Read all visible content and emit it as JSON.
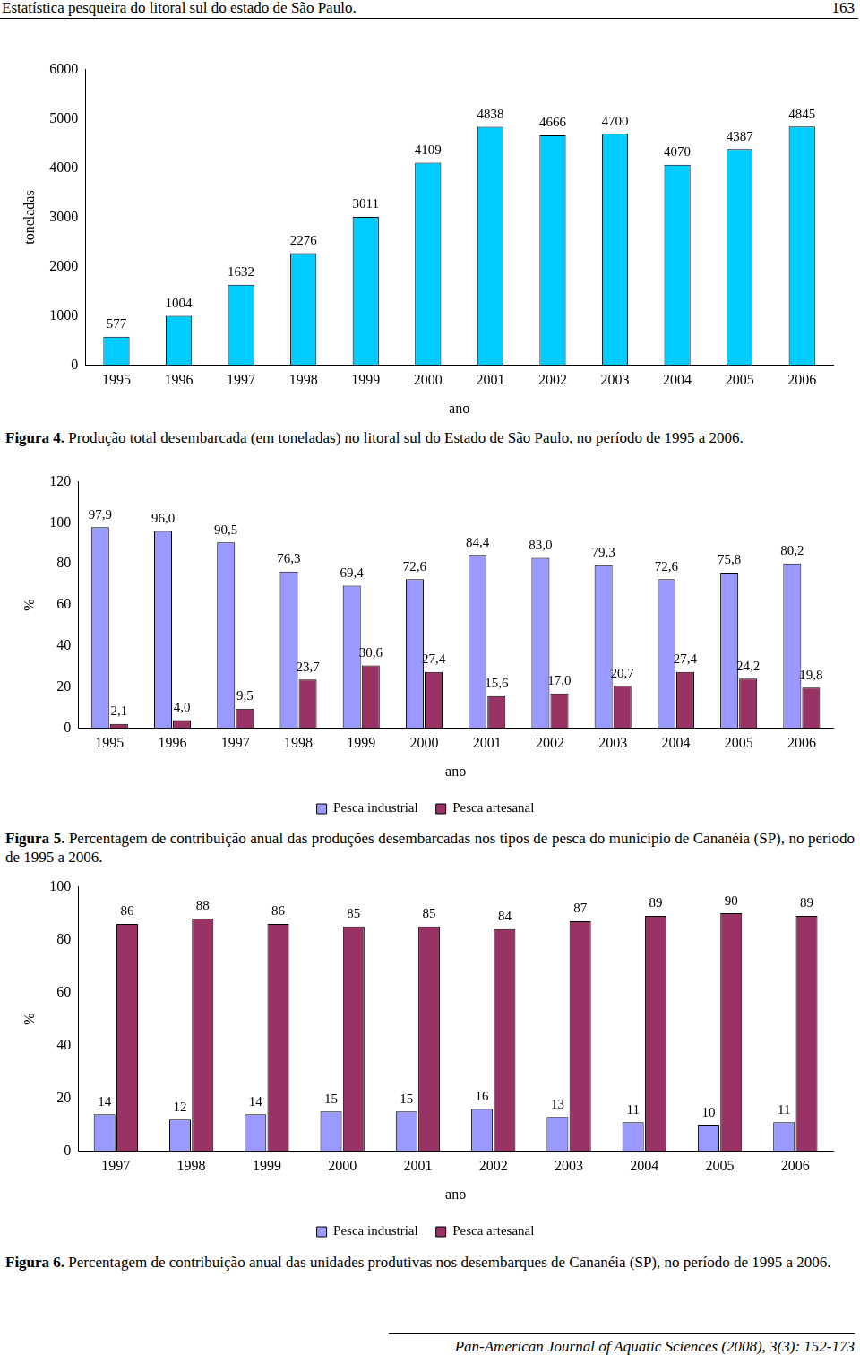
{
  "page": {
    "header": "Estatística pesqueira do litoral sul do estado de São Paulo.",
    "page_number": "163",
    "footer": "Pan-American Journal of Aquatic Sciences (2008), 3(3): 152-173"
  },
  "chart_data": [
    {
      "type": "bar",
      "caption_label": "Figura 4.",
      "caption": "Produção total desembarcada (em toneladas) no litoral sul do Estado de São Paulo, no período de 1995 a 2006.",
      "x_label": "ano",
      "y_label": "toneladas",
      "categories": [
        "1995",
        "1996",
        "1997",
        "1998",
        "1999",
        "2000",
        "2001",
        "2002",
        "2003",
        "2004",
        "2005",
        "2006"
      ],
      "values": [
        577,
        1004,
        1632,
        2276,
        3011,
        4109,
        4838,
        4666,
        4700,
        4070,
        4387,
        4845
      ],
      "color": "#00ccff",
      "ylim": [
        0,
        6000
      ],
      "yticks": [
        0,
        1000,
        2000,
        3000,
        4000,
        5000,
        6000
      ],
      "grid": false,
      "data_labels": true
    },
    {
      "type": "bar",
      "caption_label": "Figura 5.",
      "caption": "Percentagem de contribuição anual das produções desembarcadas nos tipos de pesca do município de Cananéia (SP), no período de 1995 a 2006.",
      "x_label": "ano",
      "y_label": "%",
      "categories": [
        "1995",
        "1996",
        "1997",
        "1998",
        "1999",
        "2000",
        "2001",
        "2002",
        "2003",
        "2004",
        "2005",
        "2006"
      ],
      "series": [
        {
          "name": "Pesca industrial",
          "color": "#9999ff",
          "values": [
            97.9,
            96.0,
            90.5,
            76.3,
            69.4,
            72.6,
            84.4,
            83.0,
            79.3,
            72.6,
            75.8,
            80.2
          ],
          "value_labels": [
            "97,9",
            "96,0",
            "90,5",
            "76,3",
            "69,4",
            "72,6",
            "84,4",
            "83,0",
            "79,3",
            "72,6",
            "75,8",
            "80,2"
          ]
        },
        {
          "name": "Pesca artesanal",
          "color": "#993366",
          "values": [
            2.1,
            4.0,
            9.5,
            23.7,
            30.6,
            27.4,
            15.6,
            17.0,
            20.7,
            27.4,
            24.2,
            19.8
          ],
          "value_labels": [
            "2,1",
            "4,0",
            "9,5",
            "23,7",
            "30,6",
            "27,4",
            "15,6",
            "17,0",
            "20,7",
            "27,4",
            "24,2",
            "19,8"
          ]
        }
      ],
      "ylim": [
        0,
        120
      ],
      "yticks": [
        0,
        20,
        40,
        60,
        80,
        100,
        120
      ],
      "grid": false,
      "data_labels": true,
      "legend": "bottom"
    },
    {
      "type": "bar",
      "caption_label": "Figura 6.",
      "caption": "Percentagem de contribuição anual das unidades produtivas nos desembarques de Cananéia (SP), no período de 1995 a 2006.",
      "x_label": "ano",
      "y_label": "%",
      "categories": [
        "1997",
        "1998",
        "1999",
        "2000",
        "2001",
        "2002",
        "2003",
        "2004",
        "2005",
        "2006"
      ],
      "series": [
        {
          "name": "Pesca industrial",
          "color": "#9999ff",
          "values": [
            14,
            12,
            14,
            15,
            15,
            16,
            13,
            11,
            10,
            11
          ]
        },
        {
          "name": "Pesca artesanal",
          "color": "#993366",
          "values": [
            86,
            88,
            86,
            85,
            85,
            84,
            87,
            89,
            90,
            89
          ]
        }
      ],
      "ylim": [
        0,
        100
      ],
      "yticks": [
        0,
        20,
        40,
        60,
        80,
        100
      ],
      "grid": false,
      "data_labels": true,
      "legend": "bottom"
    }
  ]
}
